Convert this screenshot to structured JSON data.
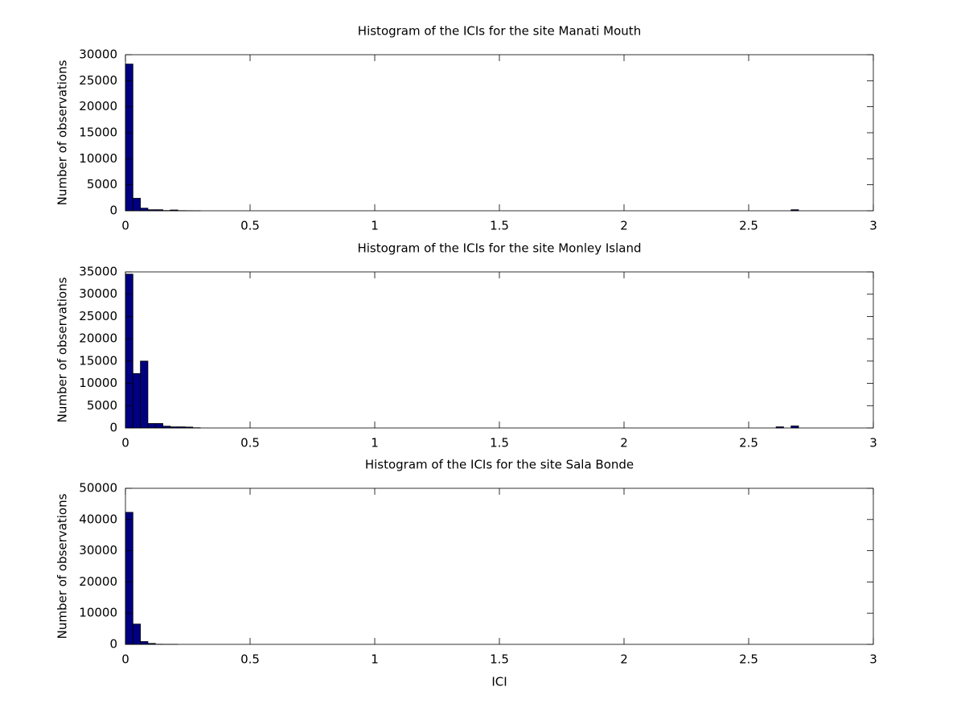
{
  "chart_data": [
    {
      "type": "histogram",
      "title": "Histogram of the ICIs for the site Manati Mouth",
      "ylabel": "Number of observations",
      "color": "#000080",
      "edgecolor": "#000000",
      "bins": [
        0,
        0.03,
        0.06,
        0.09,
        0.12,
        0.15,
        0.18,
        0.21,
        0.24,
        0.27,
        0.3,
        0.33,
        0.36,
        0.39,
        0.42,
        0.45,
        0.48,
        0.51,
        0.54,
        0.57,
        0.6,
        0.63,
        0.66,
        0.69,
        0.72,
        0.75,
        0.78,
        0.81,
        0.84,
        0.87,
        0.9,
        0.93,
        0.96,
        0.99,
        1.02,
        1.05,
        1.08,
        1.11,
        1.14,
        1.17,
        1.2,
        1.23,
        1.26,
        1.29,
        1.32,
        1.35,
        1.38,
        1.41,
        1.44,
        1.47,
        1.5,
        1.53,
        1.56,
        1.59,
        1.62,
        1.65,
        1.68,
        1.71,
        1.74,
        1.77,
        1.8,
        1.83,
        1.86,
        1.89,
        1.92,
        1.95,
        1.98,
        2.01,
        2.04,
        2.07,
        2.1,
        2.13,
        2.16,
        2.19,
        2.22,
        2.25,
        2.28,
        2.31,
        2.34,
        2.37,
        2.4,
        2.43,
        2.46,
        2.49,
        2.52,
        2.55,
        2.58,
        2.61,
        2.64,
        2.67,
        2.7
      ],
      "values": [
        28200,
        2400,
        500,
        200,
        200,
        50,
        150,
        30,
        20,
        10,
        0,
        0,
        0,
        0,
        0,
        0,
        0,
        0,
        0,
        0,
        0,
        0,
        0,
        0,
        0,
        0,
        0,
        0,
        0,
        0,
        0,
        0,
        0,
        0,
        0,
        0,
        0,
        0,
        0,
        0,
        0,
        0,
        0,
        0,
        0,
        0,
        0,
        0,
        0,
        0,
        0,
        0,
        0,
        0,
        0,
        0,
        0,
        0,
        0,
        0,
        0,
        0,
        0,
        0,
        0,
        0,
        0,
        0,
        0,
        0,
        0,
        0,
        0,
        0,
        0,
        0,
        0,
        0,
        0,
        0,
        0,
        0,
        0,
        0,
        0,
        0,
        0,
        0,
        0,
        200
      ],
      "xlim": [
        0,
        3
      ],
      "xticks": [
        0,
        0.5,
        1,
        1.5,
        2,
        2.5,
        3
      ],
      "ylim": [
        0,
        30000
      ],
      "yticks": [
        0,
        5000,
        10000,
        15000,
        20000,
        25000,
        30000
      ]
    },
    {
      "type": "histogram",
      "title": "Histogram of the ICIs for the site Monley Island",
      "ylabel": "Number of observations",
      "color": "#000080",
      "edgecolor": "#000000",
      "bins": [
        0,
        0.03,
        0.06,
        0.09,
        0.12,
        0.15,
        0.18,
        0.21,
        0.24,
        0.27,
        0.3,
        0.33,
        0.36,
        0.39,
        0.42,
        0.45,
        0.48,
        0.51,
        0.54,
        0.57,
        0.6,
        0.63,
        0.66,
        0.69,
        0.72,
        0.75,
        0.78,
        0.81,
        0.84,
        0.87,
        0.9,
        0.93,
        0.96,
        0.99,
        1.02,
        1.05,
        1.08,
        1.11,
        1.14,
        1.17,
        1.2,
        1.23,
        1.26,
        1.29,
        1.32,
        1.35,
        1.38,
        1.41,
        1.44,
        1.47,
        1.5,
        1.53,
        1.56,
        1.59,
        1.62,
        1.65,
        1.68,
        1.71,
        1.74,
        1.77,
        1.8,
        1.83,
        1.86,
        1.89,
        1.92,
        1.95,
        1.98,
        2.01,
        2.04,
        2.07,
        2.1,
        2.13,
        2.16,
        2.19,
        2.22,
        2.25,
        2.28,
        2.31,
        2.34,
        2.37,
        2.4,
        2.43,
        2.46,
        2.49,
        2.52,
        2.55,
        2.58,
        2.61,
        2.64,
        2.67,
        2.7
      ],
      "values": [
        34500,
        12200,
        15000,
        1000,
        1000,
        400,
        250,
        250,
        200,
        50,
        0,
        0,
        0,
        0,
        0,
        0,
        0,
        0,
        0,
        0,
        0,
        0,
        0,
        0,
        0,
        0,
        0,
        0,
        0,
        0,
        0,
        0,
        0,
        0,
        0,
        0,
        0,
        0,
        0,
        0,
        0,
        0,
        0,
        0,
        0,
        0,
        0,
        0,
        0,
        0,
        0,
        0,
        0,
        0,
        0,
        0,
        0,
        0,
        0,
        0,
        0,
        0,
        0,
        0,
        0,
        0,
        0,
        0,
        0,
        0,
        0,
        0,
        0,
        0,
        0,
        0,
        0,
        0,
        0,
        0,
        0,
        0,
        0,
        0,
        0,
        0,
        0,
        250,
        0,
        450
      ],
      "xlim": [
        0,
        3
      ],
      "xticks": [
        0,
        0.5,
        1,
        1.5,
        2,
        2.5,
        3
      ],
      "ylim": [
        0,
        35000
      ],
      "yticks": [
        0,
        5000,
        10000,
        15000,
        20000,
        25000,
        30000,
        35000
      ]
    },
    {
      "type": "histogram",
      "title": "Histogram of the ICIs for the site Sala Bonde",
      "ylabel": "Number of observations",
      "xlabel": "ICI",
      "color": "#000080",
      "edgecolor": "#000000",
      "bins": [
        0,
        0.03,
        0.06,
        0.09,
        0.12,
        0.15,
        0.18,
        0.21,
        0.24,
        0.27,
        0.3,
        0.33,
        0.36,
        0.39,
        0.42,
        0.45,
        0.48,
        0.51,
        0.54,
        0.57,
        0.6,
        0.63,
        0.66,
        0.69,
        0.72,
        0.75,
        0.78,
        0.81,
        0.84,
        0.87,
        0.9,
        0.93,
        0.96,
        0.99,
        1.02,
        1.05,
        1.08,
        1.11,
        1.14,
        1.17,
        1.2,
        1.23,
        1.26,
        1.29,
        1.32,
        1.35,
        1.38,
        1.41,
        1.44,
        1.47,
        1.5,
        1.53,
        1.56,
        1.59,
        1.62,
        1.65,
        1.68,
        1.71,
        1.74,
        1.77,
        1.8,
        1.83,
        1.86,
        1.89,
        1.92,
        1.95,
        1.98,
        2.01,
        2.04,
        2.07,
        2.1,
        2.13,
        2.16,
        2.19,
        2.22,
        2.25,
        2.28,
        2.31,
        2.34,
        2.37,
        2.4,
        2.43,
        2.46,
        2.49,
        2.52,
        2.55,
        2.58,
        2.61,
        2.64,
        2.67,
        2.7
      ],
      "values": [
        42300,
        6500,
        900,
        300,
        50,
        20,
        10,
        0,
        0,
        0,
        0,
        0,
        0,
        0,
        0,
        0,
        0,
        0,
        0,
        0,
        0,
        0,
        0,
        0,
        0,
        0,
        0,
        0,
        0,
        0,
        0,
        0,
        0,
        0,
        0,
        0,
        0,
        0,
        0,
        0,
        0,
        0,
        0,
        0,
        0,
        0,
        0,
        0,
        0,
        0,
        0,
        0,
        0,
        0,
        0,
        0,
        0,
        0,
        0,
        0,
        0,
        0,
        0,
        0,
        0,
        0,
        0,
        0,
        0,
        0,
        0,
        0,
        0,
        0,
        0,
        0,
        0,
        0,
        0,
        0,
        0,
        0,
        0,
        0,
        0,
        0,
        0,
        0,
        0,
        0
      ],
      "xlim": [
        0,
        3
      ],
      "xticks": [
        0,
        0.5,
        1,
        1.5,
        2,
        2.5,
        3
      ],
      "ylim": [
        0,
        50000
      ],
      "yticks": [
        0,
        10000,
        20000,
        30000,
        40000,
        50000
      ]
    }
  ]
}
